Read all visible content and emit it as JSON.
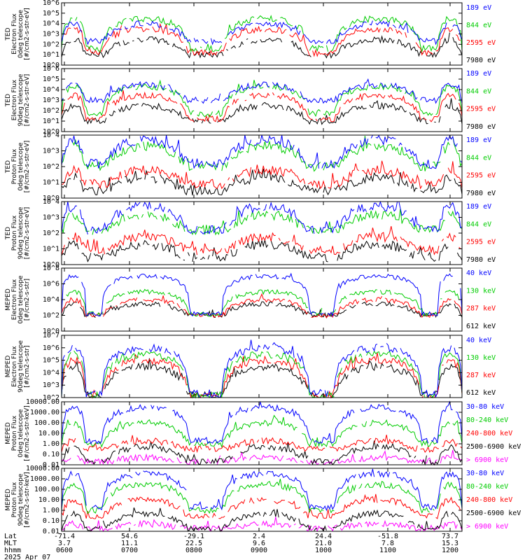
{
  "figure": {
    "date": "2025 Apr 07",
    "axis_row_labels": [
      "Lat",
      "MLT",
      "hhmm"
    ]
  },
  "chart_data": [
    {
      "type": "line",
      "ylabel": [
        "TED",
        "Electron Flux",
        "0deg telescope",
        "[#/cm2-s-str-eV]"
      ],
      "ytick_labels": [
        "10^6",
        "10^5",
        "10^4",
        "10^3",
        "10^2",
        "10^1",
        "10^0"
      ],
      "ylim": [
        1,
        1000000
      ],
      "scale": "log",
      "series": [
        {
          "name": "7980 eV",
          "color": "#000000",
          "base": 10,
          "peak": 300
        },
        {
          "name": "2595 eV",
          "color": "#ff0000",
          "base": 15,
          "peak": 3000
        },
        {
          "name": "844 eV",
          "color": "#00cc00",
          "base": 40,
          "peak": 30000
        },
        {
          "name": "189 eV",
          "color": "#0000ff",
          "base": 200,
          "peak": 10000
        }
      ]
    },
    {
      "type": "line",
      "ylabel": [
        "TED",
        "Electron Flux",
        "90deg telescope",
        "[#/cm2-s-str-eV]"
      ],
      "ytick_labels": [
        "10^6",
        "10^5",
        "10^4",
        "10^3",
        "10^2",
        "10^1",
        "10^0"
      ],
      "ylim": [
        1,
        1000000
      ],
      "scale": "log",
      "series": [
        {
          "name": "7980 eV",
          "color": "#000000",
          "base": 10,
          "peak": 300
        },
        {
          "name": "2595 eV",
          "color": "#ff0000",
          "base": 15,
          "peak": 3000
        },
        {
          "name": "844 eV",
          "color": "#00cc00",
          "base": 50,
          "peak": 20000
        },
        {
          "name": "189 eV",
          "color": "#0000ff",
          "base": 1000,
          "peak": 30000
        }
      ]
    },
    {
      "type": "line",
      "ylabel": [
        "TED",
        "Proton Flux",
        "0deg telescope",
        "[#/cm2-s-str-eV]"
      ],
      "ytick_labels": [
        "10^4",
        "10^3",
        "10^2",
        "10^1",
        "10^0"
      ],
      "ylim": [
        1,
        10000
      ],
      "scale": "log",
      "series": [
        {
          "name": "7980 eV",
          "color": "#000000",
          "base": 3,
          "peak": 20
        },
        {
          "name": "2595 eV",
          "color": "#ff0000",
          "base": 8,
          "peak": 60
        },
        {
          "name": "844 eV",
          "color": "#00cc00",
          "base": 100,
          "peak": 2000
        },
        {
          "name": "189 eV",
          "color": "#0000ff",
          "base": 150,
          "peak": 5000
        }
      ]
    },
    {
      "type": "line",
      "ylabel": [
        "TED",
        "Proton Flux",
        "90deg telescope",
        "[#/cm2-s-str-eV]"
      ],
      "ytick_labels": [
        "10^4",
        "10^3",
        "10^2",
        "10^1",
        "10^0"
      ],
      "ylim": [
        1,
        10000
      ],
      "scale": "log",
      "series": [
        {
          "name": "7980 eV",
          "color": "#000000",
          "base": 3,
          "peak": 20
        },
        {
          "name": "2595 eV",
          "color": "#ff0000",
          "base": 8,
          "peak": 60
        },
        {
          "name": "844 eV",
          "color": "#00cc00",
          "base": 150,
          "peak": 1500
        },
        {
          "name": "189 eV",
          "color": "#0000ff",
          "base": 150,
          "peak": 5000
        }
      ]
    },
    {
      "type": "line",
      "ylabel": [
        "MEPED",
        "Electron Flux",
        "0deg telescope",
        "[#/cm2-s-str]"
      ],
      "ytick_labels": [
        "10^8",
        "10^6",
        "10^4",
        "10^2",
        "10^0"
      ],
      "ylim": [
        1,
        100000000
      ],
      "scale": "log",
      "series": [
        {
          "name": "612 keV",
          "color": "#000000",
          "base": 100,
          "peak": 3000
        },
        {
          "name": "287 keV",
          "color": "#ff0000",
          "base": 100,
          "peak": 10000
        },
        {
          "name": "130 keV",
          "color": "#00cc00",
          "base": 150,
          "peak": 100000
        },
        {
          "name": "40 keV",
          "color": "#0000ff",
          "base": 150,
          "peak": 10000000
        }
      ]
    },
    {
      "type": "line",
      "ylabel": [
        "MEPED",
        "Electron Flux",
        "90deg telescope",
        "[#/cm2-s-str]"
      ],
      "ytick_labels": [
        "10^7",
        "10^6",
        "10^5",
        "10^4",
        "10^3",
        "10^2"
      ],
      "ylim": [
        100,
        10000000
      ],
      "scale": "log",
      "series": [
        {
          "name": "612 keV",
          "color": "#000000",
          "base": 150,
          "peak": 30000
        },
        {
          "name": "287 keV",
          "color": "#ff0000",
          "base": 150,
          "peak": 100000
        },
        {
          "name": "130 keV",
          "color": "#00cc00",
          "base": 150,
          "peak": 300000
        },
        {
          "name": "40 keV",
          "color": "#0000ff",
          "base": 200,
          "peak": 1000000
        }
      ]
    },
    {
      "type": "line",
      "ylabel": [
        "MEPED",
        "Proton Flux",
        "0deg telescope",
        "[#/cm2-s-str-keV]"
      ],
      "ytick_labels": [
        "10000.00",
        "1000.00",
        "100.00",
        "10.00",
        "1.00",
        "0.10",
        "0.01"
      ],
      "ylim": [
        0.01,
        10000
      ],
      "scale": "log",
      "series": [
        {
          "name": "> 6900 keV",
          "color": "#ff00ff",
          "base": 0.02,
          "peak": 0.05
        },
        {
          "name": "2500-6900 keV",
          "color": "#000000",
          "base": 0.02,
          "peak": 0.5
        },
        {
          "name": "240-800 keV",
          "color": "#ff0000",
          "base": 0.3,
          "peak": 2
        },
        {
          "name": "80-240 keV",
          "color": "#00cc00",
          "base": 1,
          "peak": 100
        },
        {
          "name": "30-80 keV",
          "color": "#0000ff",
          "base": 2,
          "peak": 3000
        }
      ]
    },
    {
      "type": "line",
      "ylabel": [
        "MEPED",
        "Proton Flux",
        "90deg telescope",
        "[#/cm2-s-str-keV]"
      ],
      "ytick_labels": [
        "10000.00",
        "1000.00",
        "100.00",
        "10.00",
        "1.00",
        "0.10",
        "0.01"
      ],
      "ylim": [
        0.01,
        10000
      ],
      "scale": "log",
      "series": [
        {
          "name": "> 6900 keV",
          "color": "#ff00ff",
          "base": 0.02,
          "peak": 0.05
        },
        {
          "name": "2500-6900 keV",
          "color": "#000000",
          "base": 0.02,
          "peak": 0.5
        },
        {
          "name": "240-800 keV",
          "color": "#ff0000",
          "base": 0.3,
          "peak": 10
        },
        {
          "name": "80-240 keV",
          "color": "#00cc00",
          "base": 1,
          "peak": 300
        },
        {
          "name": "30-80 keV",
          "color": "#0000ff",
          "base": 2,
          "peak": 3000
        }
      ]
    }
  ],
  "x_axis": {
    "rows": [
      [
        "-71.4",
        "54.6",
        "-29.1",
        "2.4",
        "24.4",
        "-51.8",
        "73.7"
      ],
      [
        "3.7",
        "11.1",
        "22.5",
        "9.6",
        "21.0",
        "7.8",
        "15.3"
      ],
      [
        "0600",
        "0700",
        "0800",
        "0900",
        "1000",
        "1100",
        "1200"
      ]
    ]
  },
  "colors": {
    "axis": "#000000",
    "black": "#000000",
    "red": "#ff0000",
    "green": "#00cc00",
    "blue": "#0000ff",
    "magenta": "#ff00ff"
  }
}
